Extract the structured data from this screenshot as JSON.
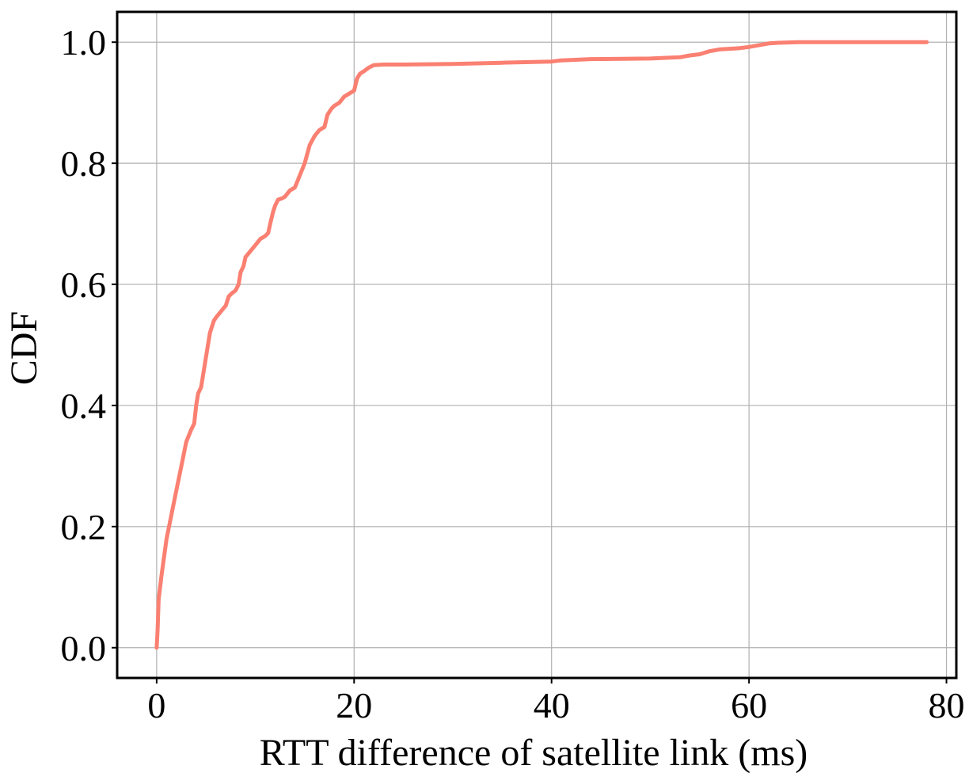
{
  "chart_data": {
    "type": "line",
    "title": "",
    "xlabel": "RTT difference of satellite link (ms)",
    "ylabel": "CDF",
    "xlim": [
      -4,
      81
    ],
    "ylim": [
      -0.05,
      1.05
    ],
    "xticks": [
      0,
      20,
      40,
      60,
      80
    ],
    "xtick_labels": [
      "0",
      "20",
      "40",
      "60",
      "80"
    ],
    "yticks": [
      0.0,
      0.2,
      0.4,
      0.6,
      0.8,
      1.0
    ],
    "ytick_labels": [
      "0.0",
      "0.2",
      "0.4",
      "0.6",
      "0.8",
      "1.0"
    ],
    "grid": true,
    "series": [
      {
        "color": "#fa8072",
        "x": [
          0,
          0.1,
          0.2,
          0.5,
          1,
          1.5,
          2,
          2.5,
          3,
          3.5,
          3.8,
          4,
          4.2,
          4.5,
          4.7,
          5,
          5.4,
          5.8,
          6,
          6.5,
          7,
          7.3,
          7.6,
          8,
          8.3,
          8.5,
          8.8,
          9,
          9.5,
          10,
          10.5,
          11,
          11.3,
          11.5,
          11.8,
          12,
          12.3,
          12.7,
          13,
          13.5,
          14,
          14.5,
          15,
          15.5,
          16,
          16.5,
          17,
          17.3,
          17.7,
          18,
          18.5,
          19,
          19.5,
          20,
          20.3,
          20.6,
          21,
          21.5,
          22,
          23,
          25,
          30,
          35,
          40,
          41,
          44,
          50,
          53,
          54,
          55,
          56,
          57,
          59,
          60,
          61,
          62,
          63,
          65,
          70,
          75,
          78
        ],
        "y": [
          0,
          0.03,
          0.08,
          0.12,
          0.18,
          0.22,
          0.26,
          0.3,
          0.34,
          0.36,
          0.37,
          0.4,
          0.42,
          0.43,
          0.45,
          0.48,
          0.52,
          0.54,
          0.545,
          0.555,
          0.565,
          0.58,
          0.585,
          0.59,
          0.6,
          0.62,
          0.63,
          0.645,
          0.655,
          0.665,
          0.675,
          0.68,
          0.685,
          0.7,
          0.72,
          0.73,
          0.74,
          0.742,
          0.745,
          0.755,
          0.76,
          0.78,
          0.8,
          0.83,
          0.845,
          0.855,
          0.86,
          0.88,
          0.89,
          0.895,
          0.9,
          0.91,
          0.915,
          0.92,
          0.94,
          0.948,
          0.952,
          0.958,
          0.962,
          0.963,
          0.963,
          0.964,
          0.966,
          0.968,
          0.97,
          0.972,
          0.973,
          0.975,
          0.978,
          0.98,
          0.985,
          0.988,
          0.99,
          0.992,
          0.995,
          0.998,
          0.999,
          1.0,
          1.0,
          1.0,
          1.0
        ]
      }
    ]
  }
}
